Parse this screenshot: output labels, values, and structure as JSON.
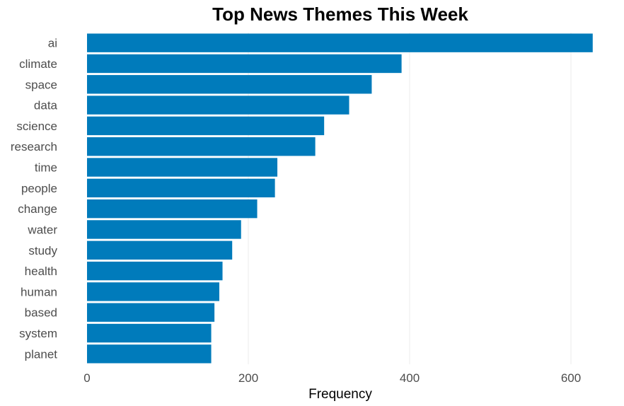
{
  "chart_data": {
    "type": "bar",
    "orientation": "horizontal",
    "title": "Top News Themes This Week",
    "xlabel": "Frequency",
    "ylabel": "",
    "categories": [
      "ai",
      "climate",
      "space",
      "data",
      "science",
      "research",
      "time",
      "people",
      "change",
      "water",
      "study",
      "health",
      "human",
      "based",
      "system",
      "planet"
    ],
    "values": [
      627,
      390,
      353,
      325,
      294,
      283,
      236,
      233,
      211,
      191,
      180,
      168,
      164,
      158,
      154,
      154
    ],
    "xlim": [
      0,
      660
    ],
    "xticks": [
      0,
      200,
      400,
      600
    ],
    "grid": "vertical",
    "legend": "none",
    "bar_color": "#007bbb"
  }
}
